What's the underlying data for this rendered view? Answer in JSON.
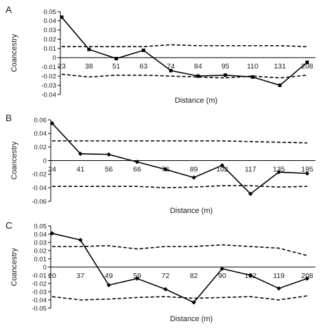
{
  "chart_data": [
    {
      "panel": "A",
      "type": "line",
      "xlabel": "Distance (m)",
      "ylabel": "Coancestry",
      "ylim": [
        -0.04,
        0.05
      ],
      "yticks": [
        "0.05",
        "0.04",
        "0.03",
        "0.02",
        "0.01",
        "0",
        "-0.01",
        "-0.02",
        "-0.03",
        "-0.04"
      ],
      "categories": [
        "23",
        "38",
        "51",
        "63",
        "74",
        "84",
        "95",
        "110",
        "131",
        "208"
      ],
      "marker": "square",
      "series": [
        {
          "values": [
            0.044,
            0.009,
            -0.001,
            0.008,
            -0.014,
            -0.02,
            -0.019,
            -0.021,
            -0.03,
            -0.005
          ]
        },
        {
          "values": [
            0.012,
            0.012,
            0.012,
            0.012,
            0.014,
            0.013,
            0.013,
            0.013,
            0.013,
            0.012
          ]
        },
        {
          "values": [
            -0.018,
            -0.021,
            -0.019,
            -0.019,
            -0.02,
            -0.021,
            -0.022,
            -0.02,
            -0.022,
            -0.019
          ]
        }
      ]
    },
    {
      "panel": "B",
      "type": "line",
      "xlabel": "Distance (m)",
      "ylabel": "Coancestry",
      "ylim": [
        -0.06,
        0.06
      ],
      "yticks": [
        "0.06",
        "0.04",
        "0.02",
        "0",
        "-0.02",
        "-0.04",
        "-0.06"
      ],
      "categories": [
        "24",
        "41",
        "56",
        "66",
        "76",
        "89",
        "102",
        "117",
        "135",
        "195"
      ],
      "marker": "diamond",
      "series": [
        {
          "values": [
            0.055,
            0.01,
            0.009,
            -0.002,
            -0.013,
            -0.025,
            -0.007,
            -0.049,
            -0.017,
            -0.019
          ]
        },
        {
          "values": [
            0.029,
            0.029,
            0.029,
            0.029,
            0.029,
            0.029,
            0.029,
            0.028,
            0.027,
            0.026
          ]
        },
        {
          "values": [
            -0.038,
            -0.038,
            -0.038,
            -0.038,
            -0.04,
            -0.039,
            -0.037,
            -0.037,
            -0.039,
            -0.038
          ]
        }
      ]
    },
    {
      "panel": "C",
      "type": "line",
      "xlabel": "Distance (m)",
      "ylabel": "Coancestry",
      "ylim": [
        -0.05,
        0.05
      ],
      "yticks": [
        "0.05",
        "0.04",
        "0.03",
        "0.02",
        "0.01",
        "0",
        "-0.01",
        "-0.02",
        "-0.03",
        "-0.04",
        "-0.05"
      ],
      "categories": [
        "20",
        "37",
        "49",
        "59",
        "72",
        "82",
        "90",
        "102",
        "119",
        "208"
      ],
      "marker": "diamond",
      "series": [
        {
          "values": [
            0.041,
            0.033,
            -0.022,
            -0.014,
            -0.027,
            -0.043,
            -0.002,
            -0.01,
            -0.026,
            -0.014
          ]
        },
        {
          "values": [
            0.025,
            0.025,
            0.026,
            0.022,
            0.025,
            0.025,
            0.027,
            0.025,
            0.023,
            0.014
          ]
        },
        {
          "values": [
            -0.036,
            -0.04,
            -0.039,
            -0.037,
            -0.036,
            -0.038,
            -0.037,
            -0.036,
            -0.04,
            -0.035
          ]
        }
      ]
    }
  ]
}
